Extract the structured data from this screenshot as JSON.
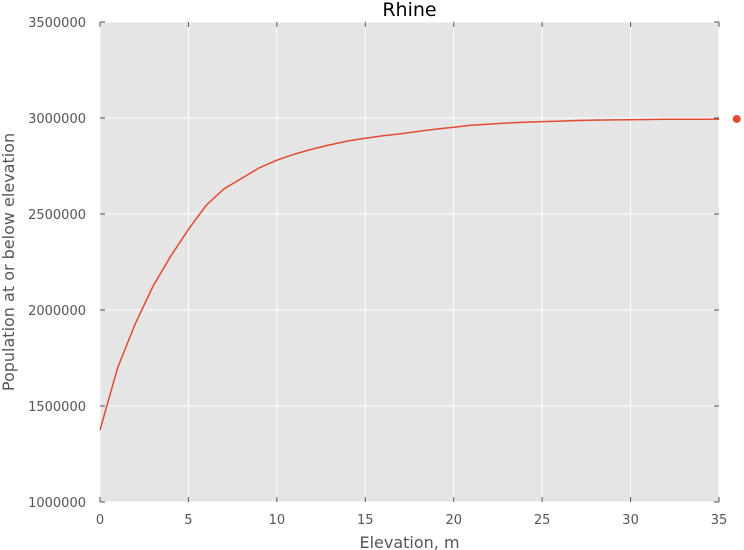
{
  "chart_data": {
    "type": "line",
    "title": "Rhine",
    "xlabel": "Elevation, m",
    "ylabel": "Population at or below elevation",
    "xlim": [
      0,
      35
    ],
    "ylim": [
      1000000,
      3500000
    ],
    "xticks": [
      "0",
      "5",
      "10",
      "15",
      "20",
      "25",
      "30",
      "35"
    ],
    "yticks": [
      "1000000",
      "1500000",
      "2000000",
      "2500000",
      "3000000",
      "3500000"
    ],
    "grid": true,
    "series": [
      {
        "x": [
          0,
          1,
          2,
          3,
          4,
          5,
          6,
          7,
          8,
          9,
          10,
          11,
          12,
          13,
          14,
          15,
          16,
          17,
          18,
          19,
          20,
          21,
          22,
          23,
          24,
          25,
          26,
          27,
          28,
          29,
          30,
          31,
          32,
          33,
          34,
          35
        ],
        "values": [
          1375000,
          1700000,
          1930000,
          2125000,
          2280000,
          2420000,
          2545000,
          2630000,
          2685000,
          2740000,
          2780000,
          2812000,
          2838000,
          2860000,
          2880000,
          2895000,
          2908000,
          2918000,
          2930000,
          2942000,
          2952000,
          2962000,
          2968000,
          2974000,
          2978000,
          2981000,
          2984000,
          2987000,
          2989000,
          2990000,
          2991000,
          2992000,
          2993000,
          2993500,
          2994000,
          2994500
        ]
      }
    ],
    "extra_point": {
      "x": 36,
      "y": 2995000
    },
    "colors": {
      "plot_background": "#e5e5e5",
      "grid": "#ffffff",
      "line": "#e24a33",
      "text": "#555555"
    }
  }
}
